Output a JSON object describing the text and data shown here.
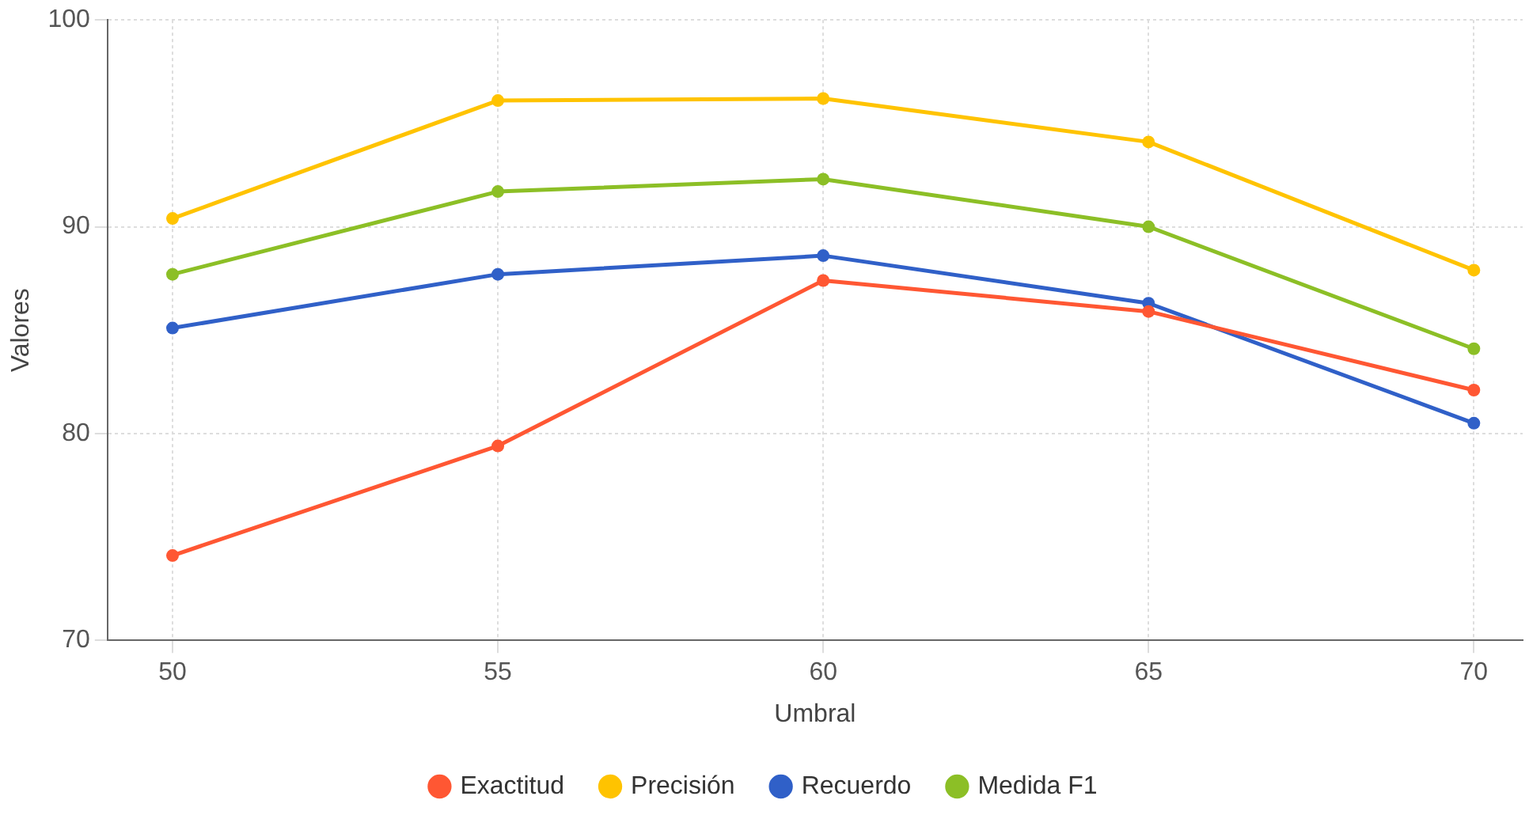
{
  "chart_data": {
    "type": "line",
    "xlabel": "Umbral",
    "ylabel": "Valores",
    "x": [
      50,
      55,
      60,
      65,
      70
    ],
    "xlim": [
      49,
      70.75
    ],
    "xticks": [
      50,
      55,
      60,
      65,
      70
    ],
    "ylim": [
      70,
      100
    ],
    "yticks": [
      70,
      80,
      90,
      100
    ],
    "series": [
      {
        "name": "Exactitud",
        "color": "#ff5733",
        "values": [
          74.1,
          79.4,
          87.4,
          85.9,
          82.1
        ]
      },
      {
        "name": "Precisión",
        "color": "#ffc300",
        "values": [
          90.4,
          96.1,
          96.2,
          94.1,
          87.9
        ]
      },
      {
        "name": "Recuerdo",
        "color": "#3060c8",
        "values": [
          85.1,
          87.7,
          88.6,
          86.3,
          80.5
        ]
      },
      {
        "name": "Medida F1",
        "color": "#8cbf26",
        "values": [
          87.7,
          91.7,
          92.3,
          90.0,
          84.1
        ]
      }
    ],
    "grid": true,
    "legend": "bottom",
    "marker": "circle",
    "line_style": "solid"
  }
}
